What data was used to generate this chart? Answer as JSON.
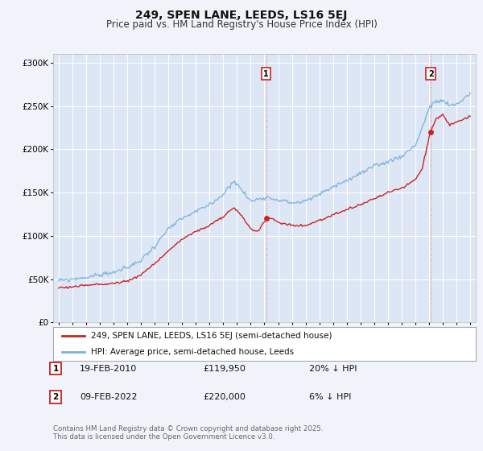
{
  "title_line1": "249, SPEN LANE, LEEDS, LS16 5EJ",
  "title_line2": "Price paid vs. HM Land Registry's House Price Index (HPI)",
  "background_color": "#f0f4fa",
  "plot_bg_color": "#dce6f5",
  "grid_color": "#ffffff",
  "hpi_color": "#7ab0d8",
  "price_color": "#cc2222",
  "sale1_date": "19-FEB-2010",
  "sale1_price": 119950,
  "sale1_label": "20% ↓ HPI",
  "sale2_date": "09-FEB-2022",
  "sale2_price": 220000,
  "sale2_label": "6% ↓ HPI",
  "legend_label1": "249, SPEN LANE, LEEDS, LS16 5EJ (semi-detached house)",
  "legend_label2": "HPI: Average price, semi-detached house, Leeds",
  "footer": "Contains HM Land Registry data © Crown copyright and database right 2025.\nThis data is licensed under the Open Government Licence v3.0.",
  "ylim": [
    0,
    310000
  ],
  "yticks": [
    0,
    50000,
    100000,
    150000,
    200000,
    250000,
    300000
  ],
  "ytick_labels": [
    "£0",
    "£50K",
    "£100K",
    "£150K",
    "£200K",
    "£250K",
    "£300K"
  ],
  "hpi_anchors": {
    "1995.0": 48000,
    "1996.0": 50000,
    "1997.0": 52000,
    "1998.0": 55000,
    "1999.0": 58000,
    "2000.0": 63000,
    "2001.0": 72000,
    "2002.0": 88000,
    "2003.0": 108000,
    "2004.0": 120000,
    "2005.0": 128000,
    "2006.0": 136000,
    "2007.0": 148000,
    "2007.75": 164000,
    "2008.5": 150000,
    "2009.0": 140000,
    "2010.0": 145000,
    "2011.0": 142000,
    "2012.0": 138000,
    "2013.0": 140000,
    "2014.0": 148000,
    "2015.0": 157000,
    "2016.0": 164000,
    "2017.0": 172000,
    "2018.0": 180000,
    "2019.0": 186000,
    "2020.0": 192000,
    "2021.0": 205000,
    "2021.5": 225000,
    "2022.0": 248000,
    "2022.5": 255000,
    "2023.0": 256000,
    "2023.5": 250000,
    "2024.0": 252000,
    "2024.5": 258000,
    "2025.0": 265000
  },
  "price_anchors": {
    "1995.0": 40000,
    "1996.0": 41000,
    "1997.0": 43000,
    "1998.0": 44000,
    "1999.0": 45000,
    "2000.0": 48000,
    "2001.0": 55000,
    "2002.0": 68000,
    "2003.0": 83000,
    "2004.0": 96000,
    "2005.0": 105000,
    "2006.0": 112000,
    "2007.0": 122000,
    "2007.75": 133000,
    "2008.5": 120000,
    "2009.0": 108000,
    "2009.5": 105000,
    "2010.17": 119950,
    "2010.5": 120000,
    "2011.0": 116000,
    "2012.0": 112000,
    "2013.0": 112000,
    "2014.0": 118000,
    "2015.0": 124000,
    "2016.0": 130000,
    "2017.0": 136000,
    "2018.0": 143000,
    "2019.0": 150000,
    "2020.0": 155000,
    "2021.0": 165000,
    "2021.5": 178000,
    "2022.08": 220000,
    "2022.5": 235000,
    "2023.0": 240000,
    "2023.5": 228000,
    "2024.0": 232000,
    "2024.5": 235000,
    "2025.0": 238000
  }
}
